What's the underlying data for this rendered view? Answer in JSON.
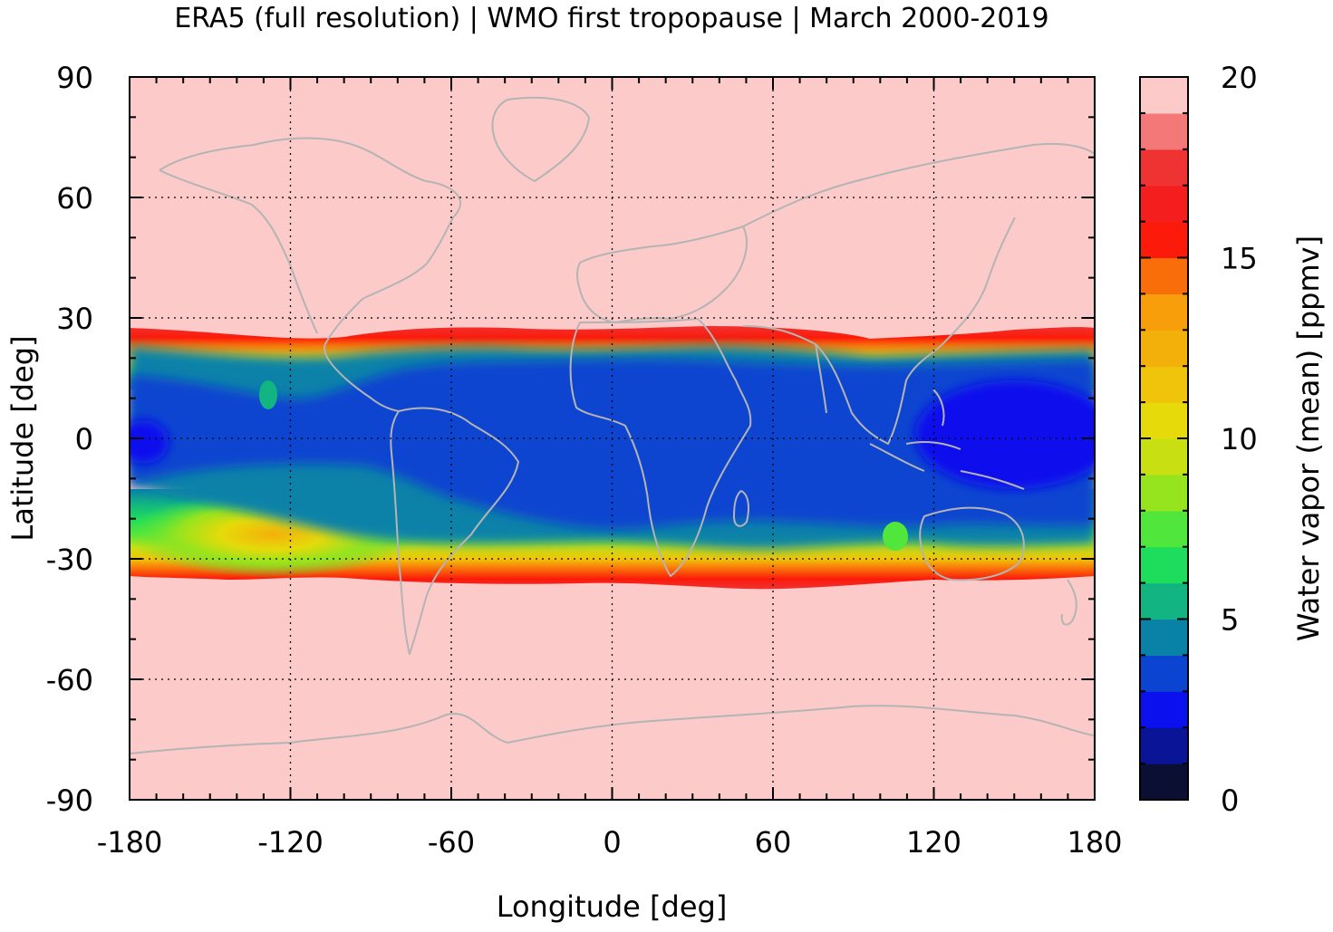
{
  "title": "ERA5 (full resolution) | WMO first tropopause | March 2000-2019",
  "chart_data": {
    "type": "heatmap",
    "title": "ERA5 (full resolution) | WMO first tropopause | March 2000-2019",
    "xlabel": "Longitude [deg]",
    "ylabel": "Latitude [deg]",
    "xlim": [
      -180,
      180
    ],
    "ylim": [
      -90,
      90
    ],
    "xticks": [
      "-180",
      "-120",
      "-60",
      "0",
      "60",
      "120",
      "180"
    ],
    "yticks": [
      "90",
      "60",
      "30",
      "0",
      "-30",
      "-60",
      "-90"
    ],
    "grid": true,
    "colorbar": {
      "label": "Water vapor (mean) [ppmv]",
      "range": [
        0,
        20
      ],
      "ticks": [
        "20",
        "15",
        "10",
        "5",
        "0"
      ],
      "levels": [
        {
          "from": 0,
          "to": 1,
          "color": "#0b0f33"
        },
        {
          "from": 1,
          "to": 2,
          "color": "#0a1496"
        },
        {
          "from": 2,
          "to": 3,
          "color": "#0a10ee"
        },
        {
          "from": 3,
          "to": 4,
          "color": "#0a44d0"
        },
        {
          "from": 4,
          "to": 5,
          "color": "#0a82a8"
        },
        {
          "from": 5,
          "to": 6,
          "color": "#12b482"
        },
        {
          "from": 6,
          "to": 7,
          "color": "#1edc5c"
        },
        {
          "from": 7,
          "to": 8,
          "color": "#50e63c"
        },
        {
          "from": 8,
          "to": 9,
          "color": "#96e41e"
        },
        {
          "from": 9,
          "to": 10,
          "color": "#c8e012"
        },
        {
          "from": 10,
          "to": 11,
          "color": "#e6da0a"
        },
        {
          "from": 11,
          "to": 12,
          "color": "#f0c40a"
        },
        {
          "from": 12,
          "to": 13,
          "color": "#f4b00a"
        },
        {
          "from": 13,
          "to": 14,
          "color": "#f79e0a"
        },
        {
          "from": 14,
          "to": 15,
          "color": "#fa6e0a"
        },
        {
          "from": 15,
          "to": 16,
          "color": "#fc1a0a"
        },
        {
          "from": 16,
          "to": 17,
          "color": "#f51e1e"
        },
        {
          "from": 17,
          "to": 18,
          "color": "#ef3232"
        },
        {
          "from": 18,
          "to": 19,
          "color": "#f47878"
        },
        {
          "from": 19,
          "to": 20,
          "color": "#fdcaca"
        }
      ]
    },
    "field_summary": {
      "background_value": 19.5,
      "core_band": {
        "lat_north": 20,
        "lat_south": -15,
        "value": 3.5
      },
      "inner_pool": {
        "lon_from": 100,
        "lon_to": 180,
        "lat_north": 17,
        "lat_south": -13,
        "value": 2.5
      },
      "north_edge_lat": 27,
      "south_edge_lat": -35,
      "dry_maximum_region": {
        "lon": -120,
        "lat": -28,
        "value": 11
      }
    },
    "coastline_color": "#b4b4b4"
  }
}
